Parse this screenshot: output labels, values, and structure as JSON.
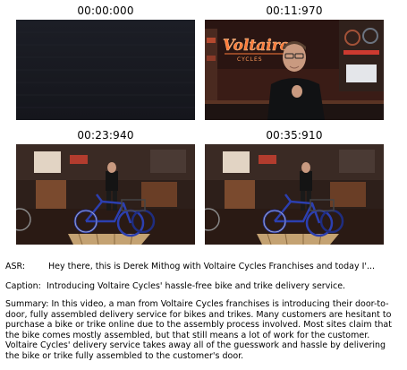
{
  "frames": [
    {
      "timestamp": "00:00:000",
      "description": "dark blank frame"
    },
    {
      "timestamp": "00:11:970",
      "sign_text": "Voltaire",
      "sign_sub": "CYCLES"
    },
    {
      "timestamp": "00:23:940"
    },
    {
      "timestamp": "00:35:910"
    }
  ],
  "asr": {
    "label": "ASR:",
    "text": "Hey there, this is Derek Mithog with Voltaire Cycles Franchises and today I'..."
  },
  "caption": {
    "label": "Caption:",
    "text": "Introducing Voltaire Cycles' hassle-free bike and trike delivery service."
  },
  "summary": {
    "label": "Summary:",
    "text": "In this video, a man from Voltaire Cycles franchises is introducing their door-to-door, fully assembled delivery service for bikes and trikes. Many customers are hesitant to purchase a bike or trike online due to the assembly process involved. Most sites claim that the bike comes mostly assembled, but that still means a lot of work for the customer. Voltaire Cycles' delivery service takes away all of the guesswork and hassle by delivering the bike or trike fully assembled to the customer's door."
  },
  "colors": {
    "neon": "#ff6a2a",
    "trike": "#2c3fb0",
    "shop_floor": "#2a1a14"
  }
}
